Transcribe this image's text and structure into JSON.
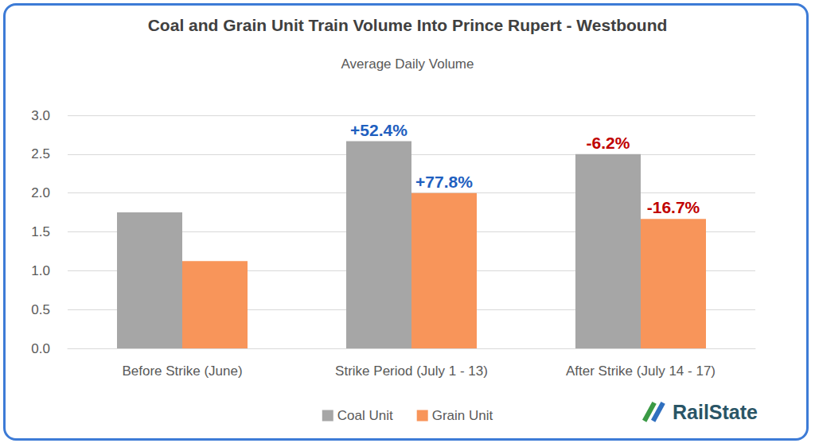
{
  "chart_data": {
    "type": "bar",
    "title": "Coal and Grain Unit Train Volume Into Prince Rupert - Westbound",
    "subtitle": "Average Daily Volume",
    "categories": [
      "Before Strike (June)",
      "Strike Period (July 1 - 13)",
      "After Strike (July 14 - 17)"
    ],
    "series": [
      {
        "name": "Coal Unit",
        "color": "#a6a6a6",
        "values": [
          1.75,
          2.667,
          2.5
        ],
        "annotations": [
          null,
          "+52.4%",
          "-6.2%"
        ]
      },
      {
        "name": "Grain Unit",
        "color": "#f8955a",
        "values": [
          1.125,
          2.0,
          1.667
        ],
        "annotations": [
          null,
          "+77.8%",
          "-16.7%"
        ]
      }
    ],
    "ylim": [
      0,
      3
    ],
    "yticks": [
      {
        "value": 0,
        "label": "0.0"
      },
      {
        "value": 0.5,
        "label": "0.5"
      },
      {
        "value": 1,
        "label": "1.0"
      },
      {
        "value": 1.5,
        "label": "1.5"
      },
      {
        "value": 2,
        "label": "2.0"
      },
      {
        "value": 2.5,
        "label": "2.5"
      },
      {
        "value": 3,
        "label": "3.0"
      }
    ],
    "grid": true,
    "legend": "bottom"
  },
  "logo": {
    "text": "RailState"
  }
}
